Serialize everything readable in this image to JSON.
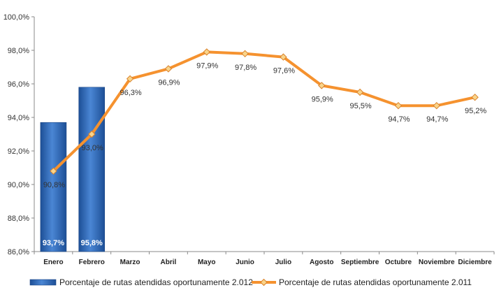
{
  "chart_data": {
    "type": "bar",
    "categories": [
      "Enero",
      "Febrero",
      "Marzo",
      "Abril",
      "Mayo",
      "Junio",
      "Julio",
      "Agosto",
      "Septiembre",
      "Octubre",
      "Noviembre",
      "Diciembre"
    ],
    "y_ticks": [
      "86,0%",
      "88,0%",
      "90,0%",
      "92,0%",
      "94,0%",
      "96,0%",
      "98,0%",
      "100,0%"
    ],
    "ylim": [
      86,
      100
    ],
    "grid": false,
    "legend_position": "bottom",
    "series": [
      {
        "name": "Porcentaje de rutas atendidas oportunamente 2.012",
        "kind": "bar",
        "color": "#2f66b3",
        "values": [
          93.7,
          95.8,
          null,
          null,
          null,
          null,
          null,
          null,
          null,
          null,
          null,
          null
        ],
        "labels": [
          "93,7%",
          "95,8%",
          "",
          "",
          "",
          "",
          "",
          "",
          "",
          "",
          "",
          ""
        ]
      },
      {
        "name": "Porcentaje de rutas atendidas oportunamente 2.011",
        "kind": "line",
        "color": "#f5922f",
        "marker_color": "#f9d48a",
        "values": [
          90.8,
          93.0,
          96.3,
          96.9,
          97.9,
          97.8,
          97.6,
          95.9,
          95.5,
          94.7,
          94.7,
          95.2
        ],
        "labels": [
          "90,8%",
          "93,0%",
          "96,3%",
          "96,9%",
          "97,9%",
          "97,8%",
          "97,6%",
          "95,9%",
          "95,5%",
          "94,7%",
          "94,7%",
          "95,2%"
        ]
      }
    ]
  }
}
